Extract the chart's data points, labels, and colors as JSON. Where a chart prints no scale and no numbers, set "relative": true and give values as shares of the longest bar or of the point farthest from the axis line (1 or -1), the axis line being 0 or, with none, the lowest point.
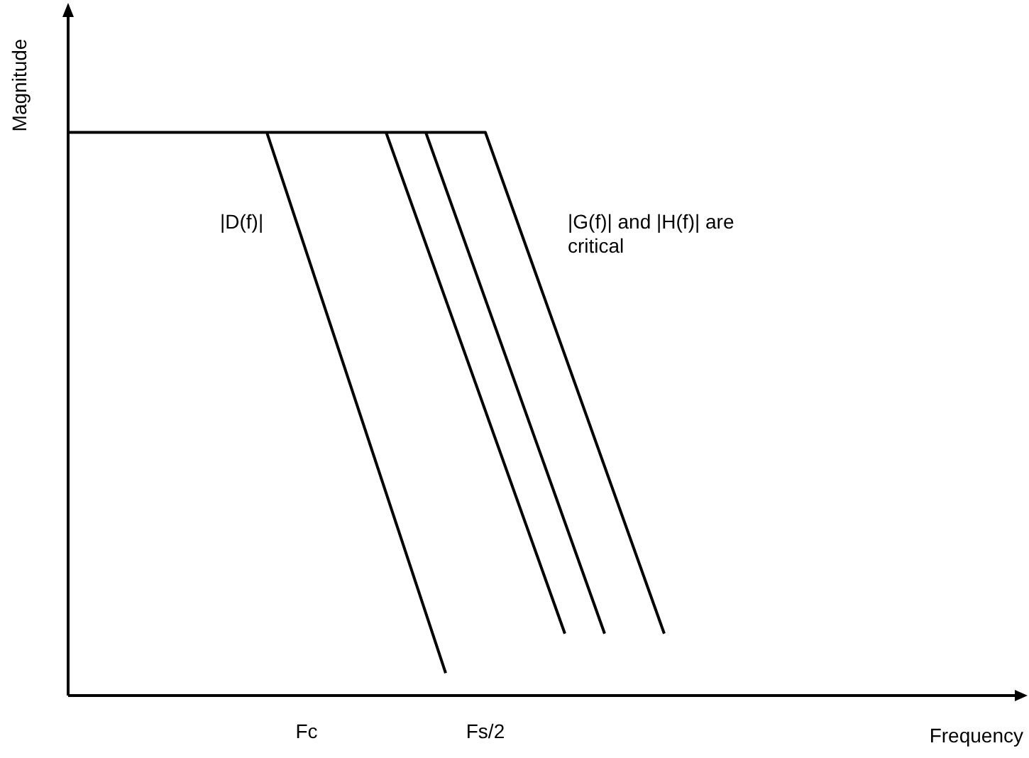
{
  "chart_data": {
    "type": "line",
    "relative": true,
    "xlabel": "Frequency",
    "ylabel": "Magnitude",
    "categories": [
      null,
      null,
      null,
      null,
      null,
      null,
      null,
      null,
      null,
      null,
      null,
      null,
      "Fc",
      null,
      null,
      null,
      null,
      null,
      null,
      null,
      null,
      "Fs/2",
      null,
      null,
      null,
      null,
      null,
      null,
      null,
      null,
      null,
      null,
      null,
      null,
      null,
      null,
      null,
      null,
      null,
      null,
      null,
      null,
      null,
      null,
      null,
      null,
      null,
      null,
      null
    ],
    "series": [
      {
        "color": "#000000",
        "values": [
          null,
          null,
          null,
          null,
          null,
          null,
          null,
          null,
          null,
          null,
          1,
          null,
          null,
          null,
          null,
          null,
          null,
          null,
          null,
          0.04,
          null,
          null,
          null,
          null,
          null,
          null,
          null,
          null,
          null,
          null,
          null,
          null,
          null,
          null,
          null,
          null,
          null,
          null,
          null,
          null,
          null,
          null,
          null,
          null,
          null,
          null,
          null,
          null,
          null
        ]
      },
      {
        "color": "#000000",
        "values": [
          null,
          null,
          null,
          null,
          null,
          null,
          null,
          null,
          null,
          null,
          null,
          null,
          null,
          null,
          null,
          null,
          1,
          null,
          null,
          null,
          null,
          null,
          null,
          null,
          null,
          0.11,
          null,
          null,
          null,
          null,
          null,
          null,
          null,
          null,
          null,
          null,
          null,
          null,
          null,
          null,
          null,
          null,
          null,
          null,
          null,
          null,
          null,
          null,
          null
        ]
      },
      {
        "color": "#000000",
        "values": [
          null,
          null,
          null,
          null,
          null,
          null,
          null,
          null,
          null,
          null,
          null,
          null,
          null,
          null,
          null,
          null,
          null,
          null,
          1,
          null,
          null,
          null,
          null,
          null,
          null,
          null,
          null,
          0.11,
          null,
          null,
          null,
          null,
          null,
          null,
          null,
          null,
          null,
          null,
          null,
          null,
          null,
          null,
          null,
          null,
          null,
          null,
          null,
          null,
          null
        ]
      },
      {
        "color": "#000000",
        "values": [
          1,
          null,
          null,
          null,
          null,
          null,
          null,
          null,
          null,
          null,
          null,
          null,
          null,
          null,
          null,
          null,
          null,
          null,
          null,
          null,
          null,
          1,
          null,
          null,
          null,
          null,
          null,
          null,
          null,
          null,
          0.11,
          null,
          null,
          null,
          null,
          null,
          null,
          null,
          null,
          null,
          null,
          null,
          null,
          null,
          null,
          null,
          null,
          null,
          null
        ]
      }
    ],
    "annotations": [
      "|D(f)|",
      "|G(f)| and |H(f)| are critical"
    ],
    "marker": "none",
    "line_style": "solid",
    "grid": false
  }
}
